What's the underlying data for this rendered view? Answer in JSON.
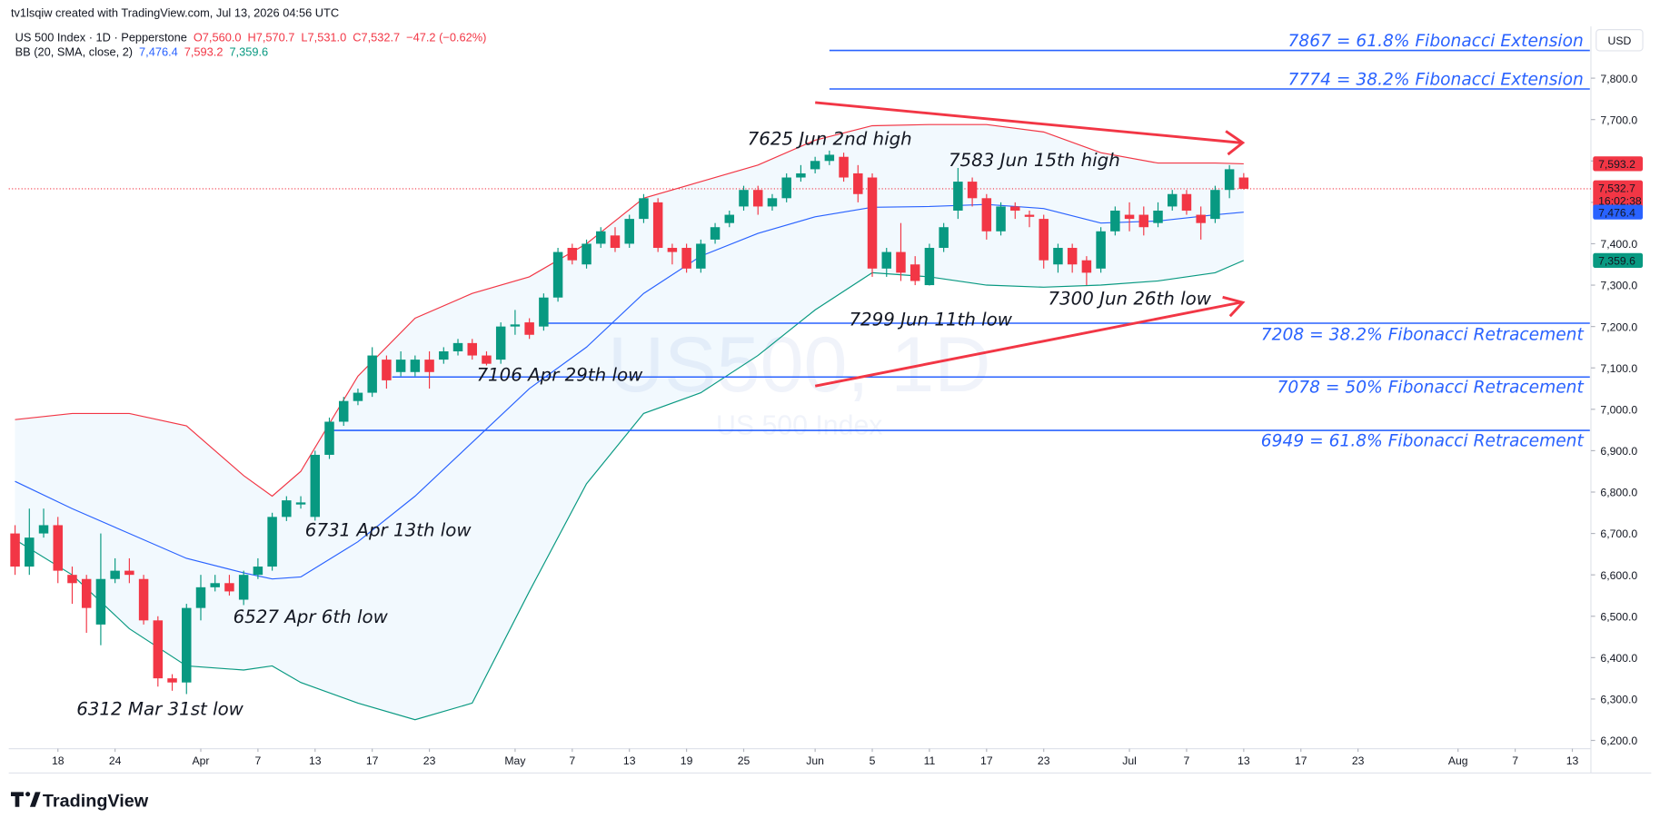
{
  "header": {
    "created": "tv1lsqiw created with TradingView.com, Jul 13, 2026 04:56 UTC",
    "brand": "TradingView"
  },
  "chart_data": {
    "type": "candlestick",
    "symbol": "US 500 Index · 1D · Pepperstone",
    "ohlc": [
      "O7,560.0",
      "H7,570.7",
      "L7,531.0",
      "C7,532.7",
      "−47.2 (−0.62%)"
    ],
    "indicator": {
      "name": "BB (20, SMA, close, 2)",
      "printed": [
        "7,476.4",
        "7,593.2",
        "7,359.6"
      ],
      "colors": [
        "#2962ff",
        "#f23645",
        "#089981"
      ]
    },
    "currency": "USD",
    "watermark": [
      "US500, 1D",
      "US 500 Index"
    ],
    "up_color": "#089981",
    "down_color": "#f23645",
    "candles": {
      "open": [
        6700,
        6620,
        6700,
        6720,
        6600,
        6590,
        6480,
        6590,
        6610,
        6590,
        6490,
        6350,
        6340,
        6520,
        6570,
        6580,
        6540,
        6600,
        6620,
        6740,
        6770,
        6740,
        6890,
        6970,
        7020,
        7040,
        7120,
        7090,
        7090,
        7120,
        7120,
        7140,
        7160,
        7130,
        7120,
        7200,
        7210,
        7200,
        7270,
        7390,
        7350,
        7400,
        7420,
        7400,
        7460,
        7500,
        7390,
        7390,
        7340,
        7410,
        7450,
        7490,
        7530,
        7490,
        7510,
        7560,
        7580,
        7600,
        7610,
        7570,
        7560,
        7340,
        7380,
        7350,
        7300,
        7390,
        7480,
        7550,
        7510,
        7430,
        7490,
        7470,
        7460,
        7350,
        7390,
        7360,
        7340,
        7430,
        7470,
        7470,
        7450,
        7490,
        7520,
        7470,
        7460,
        7530,
        7560
      ],
      "high": [
        6720,
        6760,
        6760,
        6740,
        6620,
        6600,
        6700,
        6640,
        6640,
        6600,
        6500,
        6360,
        6530,
        6600,
        6600,
        6600,
        6610,
        6640,
        6750,
        6790,
        6790,
        6900,
        6980,
        7030,
        7050,
        7150,
        7130,
        7140,
        7130,
        7140,
        7150,
        7170,
        7170,
        7140,
        7210,
        7240,
        7220,
        7280,
        7390,
        7400,
        7410,
        7440,
        7440,
        7470,
        7520,
        7510,
        7400,
        7400,
        7410,
        7450,
        7480,
        7540,
        7540,
        7520,
        7570,
        7590,
        7610,
        7625,
        7620,
        7590,
        7570,
        7390,
        7450,
        7370,
        7400,
        7450,
        7583,
        7560,
        7520,
        7500,
        7500,
        7480,
        7470,
        7400,
        7400,
        7370,
        7440,
        7490,
        7500,
        7490,
        7500,
        7530,
        7530,
        7490,
        7540,
        7590,
        7570.7
      ],
      "low": [
        6600,
        6600,
        6690,
        6580,
        6530,
        6460,
        6430,
        6580,
        6580,
        6480,
        6330,
        6320,
        6312,
        6490,
        6560,
        6550,
        6527,
        6590,
        6610,
        6730,
        6760,
        6731,
        6880,
        6960,
        7010,
        7030,
        7050,
        7080,
        7080,
        7050,
        7110,
        7130,
        7120,
        7106,
        7110,
        7180,
        7170,
        7190,
        7260,
        7350,
        7340,
        7390,
        7380,
        7390,
        7450,
        7380,
        7350,
        7330,
        7330,
        7400,
        7440,
        7480,
        7470,
        7480,
        7500,
        7550,
        7570,
        7590,
        7550,
        7500,
        7320,
        7320,
        7310,
        7300,
        7299,
        7380,
        7460,
        7490,
        7410,
        7420,
        7460,
        7440,
        7340,
        7330,
        7330,
        7300,
        7330,
        7420,
        7430,
        7420,
        7440,
        7480,
        7470,
        7410,
        7450,
        7510,
        7531
      ],
      "close": [
        6620,
        6690,
        6720,
        6610,
        6580,
        6520,
        6590,
        6610,
        6600,
        6490,
        6350,
        6340,
        6520,
        6570,
        6580,
        6560,
        6600,
        6620,
        6740,
        6780,
        6775,
        6890,
        6970,
        7020,
        7040,
        7130,
        7070,
        7120,
        7120,
        7090,
        7140,
        7160,
        7130,
        7110,
        7200,
        7205,
        7180,
        7270,
        7380,
        7360,
        7400,
        7430,
        7390,
        7460,
        7510,
        7390,
        7380,
        7340,
        7400,
        7440,
        7470,
        7530,
        7490,
        7510,
        7560,
        7570,
        7600,
        7615,
        7560,
        7520,
        7340,
        7380,
        7330,
        7310,
        7390,
        7440,
        7550,
        7510,
        7430,
        7490,
        7480,
        7465,
        7360,
        7390,
        7350,
        7330,
        7430,
        7480,
        7460,
        7440,
        7480,
        7520,
        7480,
        7450,
        7530,
        7580,
        7532.7
      ]
    },
    "bb": {
      "x": [
        0,
        4,
        8,
        12,
        16,
        18,
        20,
        24,
        28,
        32,
        36,
        40,
        44,
        48,
        52,
        56,
        60,
        64,
        68,
        72,
        76,
        80,
        84,
        86
      ],
      "upper": [
        6975,
        6990,
        6990,
        6960,
        6840,
        6790,
        6850,
        7080,
        7220,
        7280,
        7320,
        7400,
        7510,
        7550,
        7590,
        7650,
        7685,
        7688,
        7688,
        7670,
        7620,
        7595,
        7595,
        7593.2
      ],
      "middle": [
        6826,
        6760,
        6700,
        6640,
        6605,
        6590,
        6595,
        6680,
        6790,
        6920,
        7050,
        7150,
        7280,
        7370,
        7425,
        7465,
        7488,
        7490,
        7495,
        7485,
        7450,
        7455,
        7470,
        7476.4
      ],
      "lower": [
        6685,
        6600,
        6470,
        6380,
        6370,
        6380,
        6340,
        6290,
        6250,
        6290,
        6560,
        6820,
        6990,
        7040,
        7130,
        7240,
        7330,
        7320,
        7300,
        7295,
        7300,
        7310,
        7330,
        7359.6
      ]
    },
    "xlim": [
      -0.44,
      110.3
    ],
    "ylim": [
      6180,
      7925
    ],
    "xticks": [
      {
        "value": 3,
        "label": "18"
      },
      {
        "value": 7,
        "label": "24"
      },
      {
        "value": 13,
        "label": "Apr"
      },
      {
        "value": 17,
        "label": "7"
      },
      {
        "value": 21,
        "label": "13"
      },
      {
        "value": 25,
        "label": "17"
      },
      {
        "value": 29,
        "label": "23"
      },
      {
        "value": 35,
        "label": "May"
      },
      {
        "value": 39,
        "label": "7"
      },
      {
        "value": 43,
        "label": "13"
      },
      {
        "value": 47,
        "label": "19"
      },
      {
        "value": 51,
        "label": "25"
      },
      {
        "value": 56,
        "label": "Jun"
      },
      {
        "value": 60,
        "label": "5"
      },
      {
        "value": 64,
        "label": "11"
      },
      {
        "value": 68,
        "label": "17"
      },
      {
        "value": 72,
        "label": "23"
      },
      {
        "value": 78,
        "label": "Jul"
      },
      {
        "value": 82,
        "label": "7"
      },
      {
        "value": 86,
        "label": "13"
      },
      {
        "value": 90,
        "label": "17"
      },
      {
        "value": 94,
        "label": "23"
      },
      {
        "value": 101,
        "label": "Aug"
      },
      {
        "value": 105,
        "label": "7"
      },
      {
        "value": 109,
        "label": "13"
      }
    ],
    "yticks": [
      {
        "value": 6200,
        "label": "6,200.0"
      },
      {
        "value": 6300,
        "label": "6,300.0"
      },
      {
        "value": 6400,
        "label": "6,400.0"
      },
      {
        "value": 6500,
        "label": "6,500.0"
      },
      {
        "value": 6600,
        "label": "6,600.0"
      },
      {
        "value": 6700,
        "label": "6,700.0"
      },
      {
        "value": 6800,
        "label": "6,800.0"
      },
      {
        "value": 6900,
        "label": "6,900.0"
      },
      {
        "value": 7000,
        "label": "7,000.0"
      },
      {
        "value": 7100,
        "label": "7,100.0"
      },
      {
        "value": 7200,
        "label": "7,200.0"
      },
      {
        "value": 7300,
        "label": "7,300.0"
      },
      {
        "value": 7400,
        "label": "7,400.0"
      },
      {
        "value": 7500,
        "label": "7,500.0"
      },
      {
        "value": 7600,
        "label": "7,600.0"
      },
      {
        "value": 7700,
        "label": "7,700.0"
      },
      {
        "value": 7800,
        "label": "7,800.0"
      }
    ],
    "price_badges": [
      {
        "value": 7593.2,
        "label": "7,593.2",
        "color": "#f23645"
      },
      {
        "value": 7532.7,
        "label": "7,532.7",
        "sub": "16:02:38",
        "color": "#f23645"
      },
      {
        "value": 7476.4,
        "label": "7,476.4",
        "color": "#2962ff"
      },
      {
        "value": 7359.6,
        "label": "7,359.6",
        "color": "#089981"
      }
    ],
    "levels": [
      {
        "value": 7867,
        "x_start": 57,
        "label": "7867 = 61.8% Fibonacci Extension"
      },
      {
        "value": 7774,
        "x_start": 57,
        "label": "7774 = 38.2% Fibonacci Extension"
      },
      {
        "value": 7208,
        "x_start": 37,
        "label": "7208 = 38.2% Fibonacci Retracement"
      },
      {
        "value": 7078,
        "x_start": 26.4,
        "label": "7078 = 50% Fibonacci Retracement"
      },
      {
        "value": 6949,
        "x_start": 22.3,
        "label": "6949 = 61.8% Fibonacci Retracement"
      }
    ],
    "level_color": "#2962ff",
    "annotations": [
      "7625 Jun 2nd high",
      "7583 Jun 15th high",
      "7299 Jun 11th low",
      "7300 Jun 26th low",
      "7106 Apr 29th low",
      "6731 Apr 13th low",
      "6527 Apr 6th low",
      "6312 Mar 31st low"
    ]
  }
}
